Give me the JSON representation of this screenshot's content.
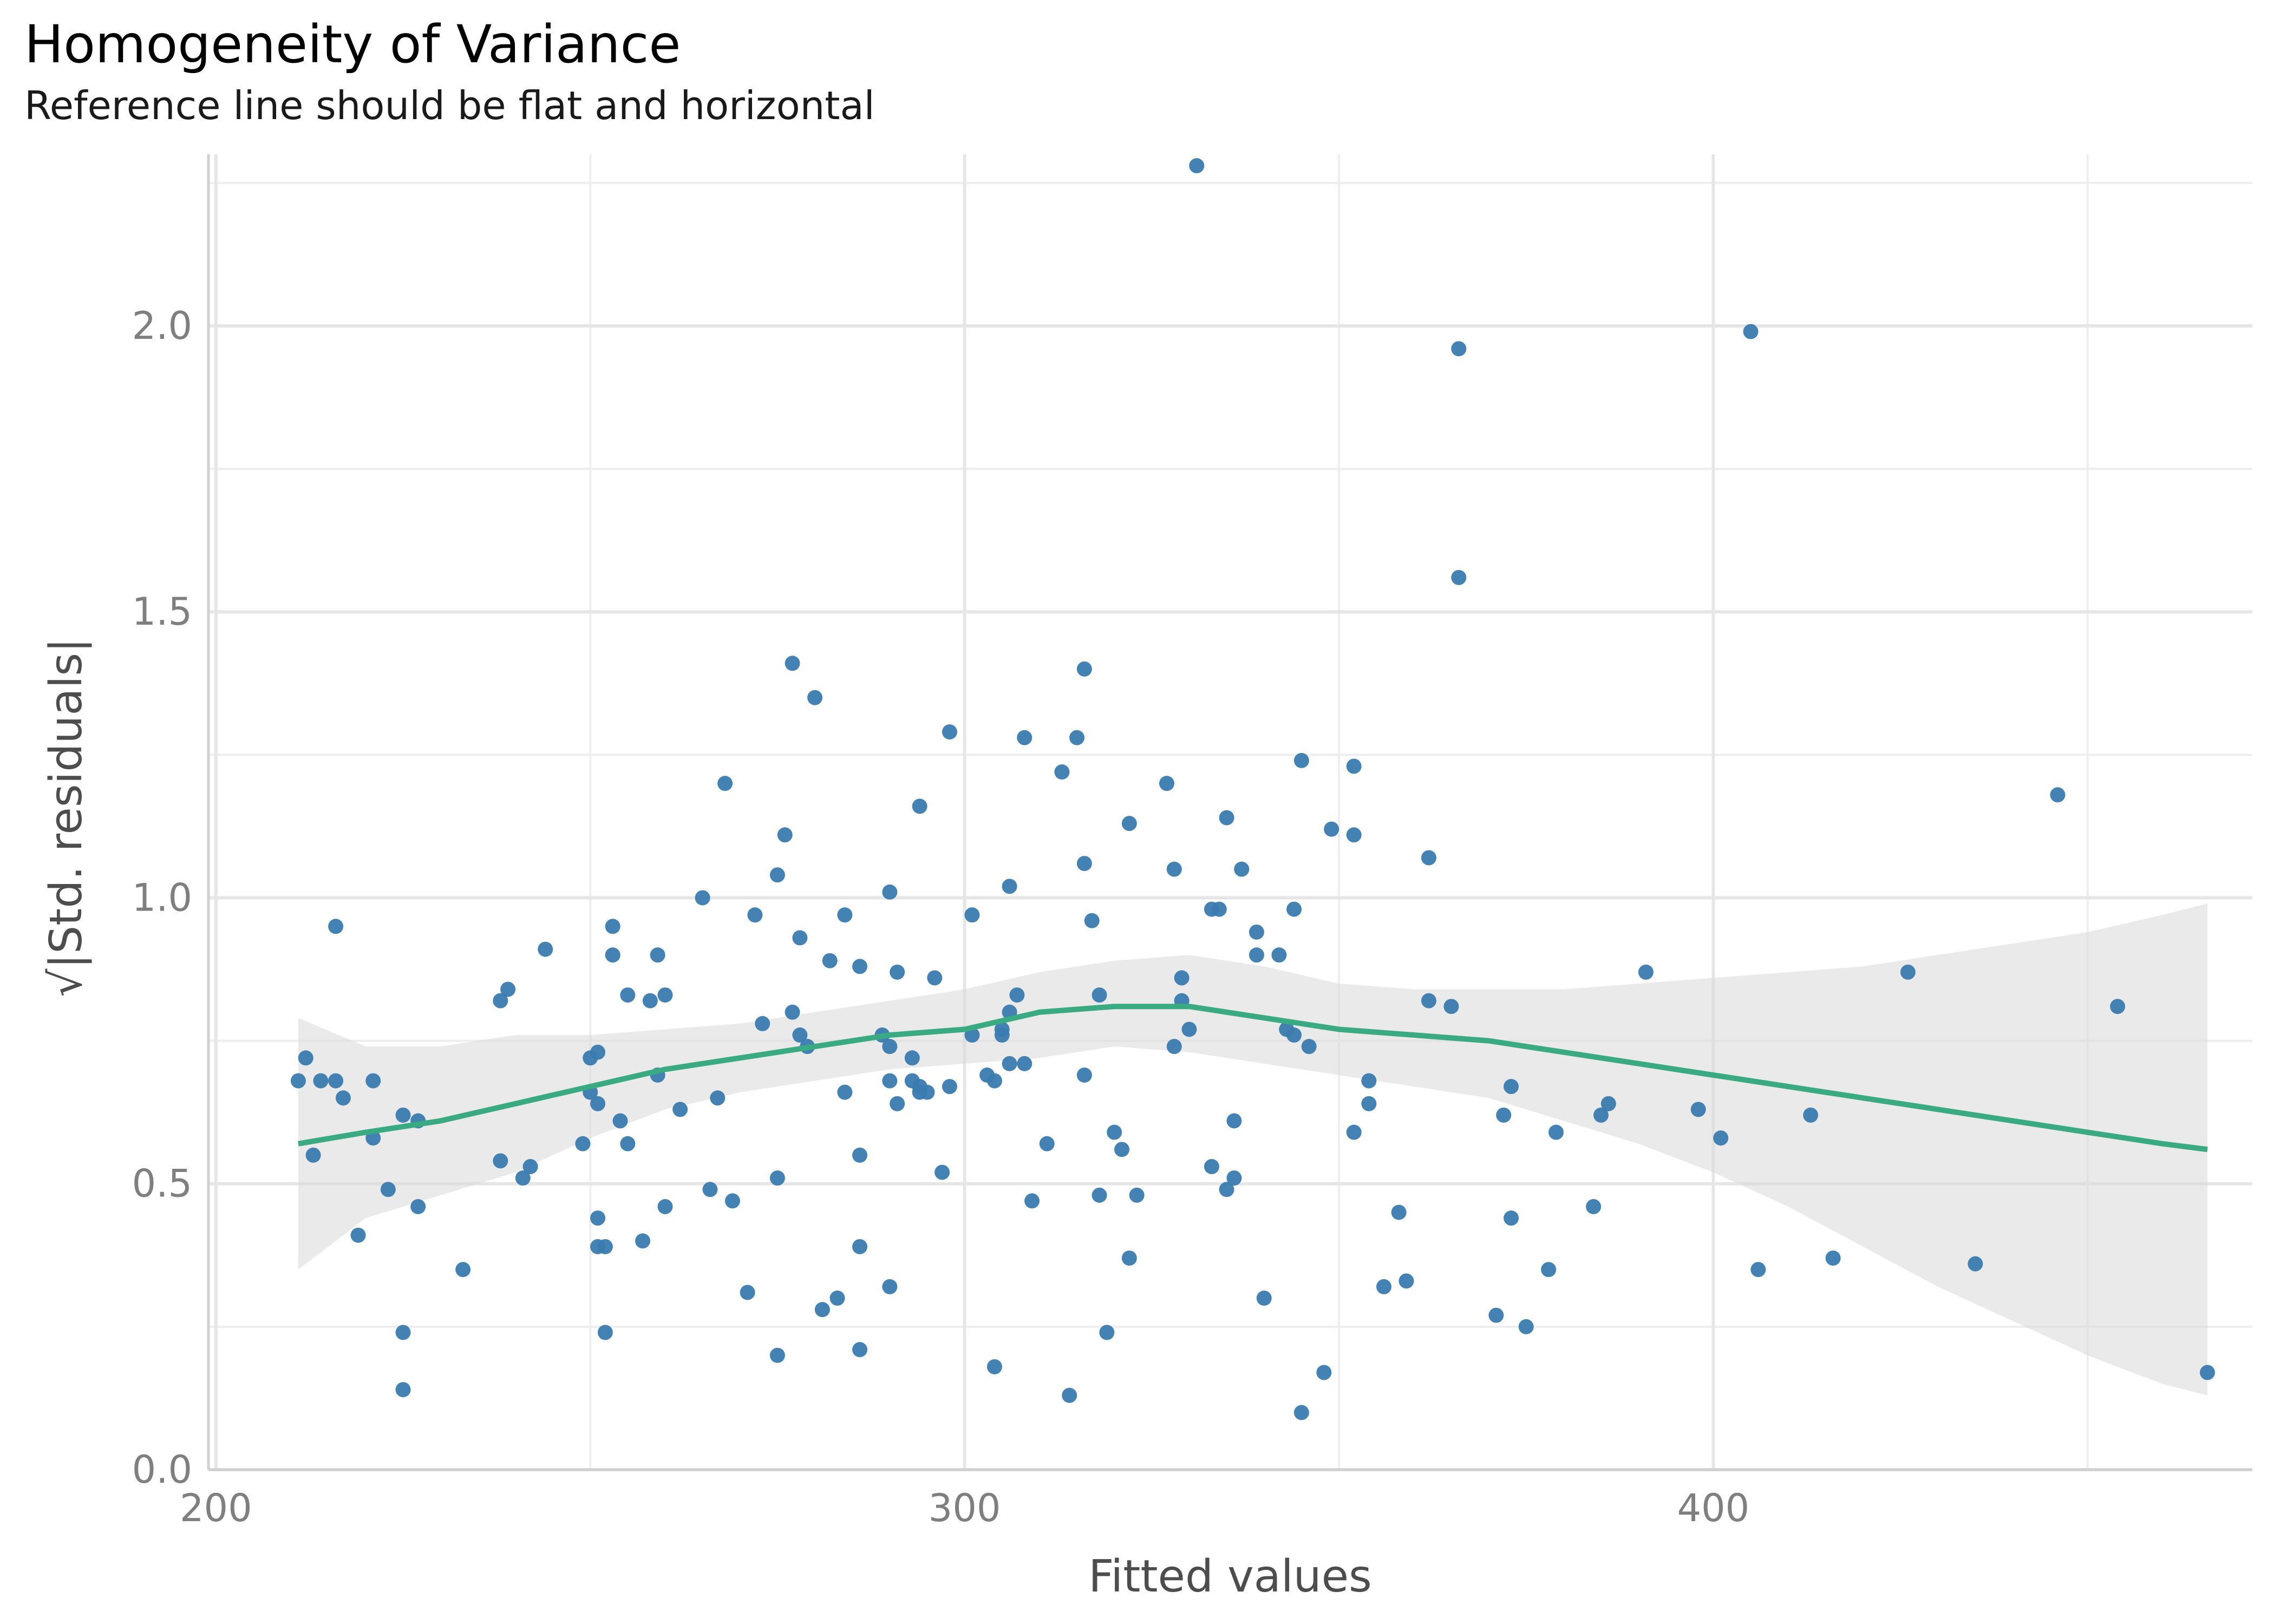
{
  "chart_data": {
    "type": "scatter",
    "title": "Homogeneity of Variance",
    "subtitle": "Reference line should be flat and horizontal",
    "xlabel": "Fitted values",
    "ylabel": "√|Std. residuals|",
    "xlim": [
      199,
      472
    ],
    "ylim": [
      0,
      2.3
    ],
    "x_ticks": [
      200,
      300,
      400
    ],
    "y_ticks": [
      0.0,
      0.5,
      1.0,
      1.5,
      2.0
    ],
    "x_tick_labels": [
      "200",
      "300",
      "400"
    ],
    "y_tick_labels": [
      "0.0",
      "0.5",
      "1.0",
      "1.5",
      "2.0"
    ],
    "grid": true,
    "colors": {
      "points": "#3a7bb0",
      "smooth": "#3aaa82",
      "band": "#d9d9d9"
    },
    "points": [
      [
        211,
        0.68
      ],
      [
        212,
        0.72
      ],
      [
        214,
        0.68
      ],
      [
        216,
        0.68
      ],
      [
        216,
        0.95
      ],
      [
        217,
        0.65
      ],
      [
        213,
        0.55
      ],
      [
        219,
        0.41
      ],
      [
        221,
        0.58
      ],
      [
        221,
        0.68
      ],
      [
        223,
        0.49
      ],
      [
        225,
        0.24
      ],
      [
        225,
        0.14
      ],
      [
        225,
        0.62
      ],
      [
        227,
        0.46
      ],
      [
        227,
        0.61
      ],
      [
        233,
        0.35
      ],
      [
        238,
        0.82
      ],
      [
        239,
        0.84
      ],
      [
        238,
        0.54
      ],
      [
        241,
        0.51
      ],
      [
        242,
        0.53
      ],
      [
        244,
        0.91
      ],
      [
        249,
        0.57
      ],
      [
        250,
        0.72
      ],
      [
        250,
        0.66
      ],
      [
        251,
        0.73
      ],
      [
        251,
        0.64
      ],
      [
        251,
        0.44
      ],
      [
        251,
        0.39
      ],
      [
        252,
        0.24
      ],
      [
        252,
        0.39
      ],
      [
        253,
        0.9
      ],
      [
        253,
        0.95
      ],
      [
        254,
        0.61
      ],
      [
        255,
        0.83
      ],
      [
        255,
        0.57
      ],
      [
        257,
        0.4
      ],
      [
        258,
        0.82
      ],
      [
        259,
        0.69
      ],
      [
        259,
        0.9
      ],
      [
        260,
        0.46
      ],
      [
        260,
        0.83
      ],
      [
        262,
        0.63
      ],
      [
        265,
        1.0
      ],
      [
        266,
        0.49
      ],
      [
        267,
        0.65
      ],
      [
        268,
        1.2
      ],
      [
        269,
        0.47
      ],
      [
        271,
        0.31
      ],
      [
        272,
        0.97
      ],
      [
        273,
        0.78
      ],
      [
        275,
        1.04
      ],
      [
        276,
        1.11
      ],
      [
        275,
        0.51
      ],
      [
        275,
        0.2
      ],
      [
        277,
        1.41
      ],
      [
        277,
        0.8
      ],
      [
        278,
        0.93
      ],
      [
        278,
        0.76
      ],
      [
        279,
        0.74
      ],
      [
        280,
        1.35
      ],
      [
        281,
        0.28
      ],
      [
        282,
        0.89
      ],
      [
        283,
        0.3
      ],
      [
        284,
        0.66
      ],
      [
        284,
        0.97
      ],
      [
        286,
        0.88
      ],
      [
        286,
        0.55
      ],
      [
        286,
        0.39
      ],
      [
        286,
        0.21
      ],
      [
        289,
        0.76
      ],
      [
        290,
        0.74
      ],
      [
        290,
        1.01
      ],
      [
        290,
        0.68
      ],
      [
        291,
        0.87
      ],
      [
        291,
        0.64
      ],
      [
        290,
        0.32
      ],
      [
        293,
        0.72
      ],
      [
        293,
        0.68
      ],
      [
        294,
        0.66
      ],
      [
        294,
        0.67
      ],
      [
        295,
        0.66
      ],
      [
        294,
        1.16
      ],
      [
        296,
        0.86
      ],
      [
        297,
        0.52
      ],
      [
        298,
        1.29
      ],
      [
        298,
        0.67
      ],
      [
        301,
        0.97
      ],
      [
        301,
        0.76
      ],
      [
        303,
        0.69
      ],
      [
        304,
        0.68
      ],
      [
        304,
        0.18
      ],
      [
        305,
        0.77
      ],
      [
        306,
        1.02
      ],
      [
        305,
        0.76
      ],
      [
        306,
        0.71
      ],
      [
        306,
        0.8
      ],
      [
        307,
        0.83
      ],
      [
        308,
        1.28
      ],
      [
        308,
        0.71
      ],
      [
        309,
        0.47
      ],
      [
        311,
        0.57
      ],
      [
        313,
        1.22
      ],
      [
        314,
        0.13
      ],
      [
        315,
        1.28
      ],
      [
        316,
        1.4
      ],
      [
        316,
        1.06
      ],
      [
        316,
        0.69
      ],
      [
        317,
        0.96
      ],
      [
        318,
        0.83
      ],
      [
        318,
        0.48
      ],
      [
        319,
        0.24
      ],
      [
        320,
        0.59
      ],
      [
        321,
        0.56
      ],
      [
        322,
        1.13
      ],
      [
        322,
        0.37
      ],
      [
        323,
        0.48
      ],
      [
        327,
        1.2
      ],
      [
        328,
        1.05
      ],
      [
        328,
        0.74
      ],
      [
        329,
        0.82
      ],
      [
        329,
        0.86
      ],
      [
        330,
        0.77
      ],
      [
        331,
        2.28
      ],
      [
        333,
        0.98
      ],
      [
        333,
        0.53
      ],
      [
        334,
        0.98
      ],
      [
        335,
        0.49
      ],
      [
        335,
        1.14
      ],
      [
        336,
        0.51
      ],
      [
        336,
        0.61
      ],
      [
        337,
        1.05
      ],
      [
        339,
        0.94
      ],
      [
        339,
        0.9
      ],
      [
        340,
        0.3
      ],
      [
        342,
        0.9
      ],
      [
        343,
        0.77
      ],
      [
        344,
        0.98
      ],
      [
        344,
        0.76
      ],
      [
        345,
        1.24
      ],
      [
        345,
        0.1
      ],
      [
        346,
        0.74
      ],
      [
        348,
        0.17
      ],
      [
        349,
        1.12
      ],
      [
        352,
        1.11
      ],
      [
        352,
        0.59
      ],
      [
        352,
        1.23
      ],
      [
        354,
        0.68
      ],
      [
        354,
        0.64
      ],
      [
        356,
        0.32
      ],
      [
        358,
        0.45
      ],
      [
        359,
        0.33
      ],
      [
        362,
        1.07
      ],
      [
        362,
        0.82
      ],
      [
        365,
        0.81
      ],
      [
        366,
        1.56
      ],
      [
        366,
        1.96
      ],
      [
        371,
        0.27
      ],
      [
        372,
        0.62
      ],
      [
        373,
        0.67
      ],
      [
        373,
        0.44
      ],
      [
        375,
        0.25
      ],
      [
        378,
        0.35
      ],
      [
        379,
        0.59
      ],
      [
        384,
        0.46
      ],
      [
        385,
        0.62
      ],
      [
        386,
        0.64
      ],
      [
        391,
        0.87
      ],
      [
        398,
        0.63
      ],
      [
        401,
        0.58
      ],
      [
        405,
        1.99
      ],
      [
        406,
        0.35
      ],
      [
        413,
        0.62
      ],
      [
        416,
        0.37
      ],
      [
        426,
        0.87
      ],
      [
        435,
        0.36
      ],
      [
        446,
        1.18
      ],
      [
        454,
        0.81
      ],
      [
        466,
        0.17
      ]
    ],
    "smooth": [
      [
        211,
        0.57
      ],
      [
        220,
        0.59
      ],
      [
        230,
        0.61
      ],
      [
        240,
        0.64
      ],
      [
        250,
        0.67
      ],
      [
        260,
        0.7
      ],
      [
        270,
        0.72
      ],
      [
        280,
        0.74
      ],
      [
        290,
        0.76
      ],
      [
        300,
        0.77
      ],
      [
        310,
        0.8
      ],
      [
        320,
        0.81
      ],
      [
        330,
        0.81
      ],
      [
        340,
        0.79
      ],
      [
        350,
        0.77
      ],
      [
        360,
        0.76
      ],
      [
        370,
        0.75
      ],
      [
        380,
        0.73
      ],
      [
        390,
        0.71
      ],
      [
        400,
        0.69
      ],
      [
        410,
        0.67
      ],
      [
        420,
        0.65
      ],
      [
        430,
        0.63
      ],
      [
        440,
        0.61
      ],
      [
        450,
        0.59
      ],
      [
        460,
        0.57
      ],
      [
        466,
        0.56
      ]
    ],
    "band_upper": [
      [
        211,
        0.79
      ],
      [
        220,
        0.74
      ],
      [
        230,
        0.74
      ],
      [
        240,
        0.76
      ],
      [
        250,
        0.76
      ],
      [
        260,
        0.77
      ],
      [
        270,
        0.78
      ],
      [
        280,
        0.8
      ],
      [
        290,
        0.82
      ],
      [
        300,
        0.84
      ],
      [
        310,
        0.87
      ],
      [
        320,
        0.89
      ],
      [
        330,
        0.9
      ],
      [
        340,
        0.88
      ],
      [
        350,
        0.85
      ],
      [
        360,
        0.84
      ],
      [
        370,
        0.84
      ],
      [
        380,
        0.84
      ],
      [
        390,
        0.85
      ],
      [
        400,
        0.86
      ],
      [
        410,
        0.87
      ],
      [
        420,
        0.88
      ],
      [
        430,
        0.9
      ],
      [
        440,
        0.92
      ],
      [
        450,
        0.94
      ],
      [
        460,
        0.97
      ],
      [
        466,
        0.99
      ]
    ],
    "band_lower": [
      [
        211,
        0.35
      ],
      [
        220,
        0.44
      ],
      [
        230,
        0.48
      ],
      [
        240,
        0.52
      ],
      [
        250,
        0.58
      ],
      [
        260,
        0.63
      ],
      [
        270,
        0.66
      ],
      [
        280,
        0.68
      ],
      [
        290,
        0.7
      ],
      [
        300,
        0.71
      ],
      [
        310,
        0.72
      ],
      [
        320,
        0.74
      ],
      [
        330,
        0.73
      ],
      [
        340,
        0.71
      ],
      [
        350,
        0.69
      ],
      [
        360,
        0.67
      ],
      [
        370,
        0.65
      ],
      [
        380,
        0.61
      ],
      [
        390,
        0.57
      ],
      [
        400,
        0.52
      ],
      [
        410,
        0.46
      ],
      [
        420,
        0.39
      ],
      [
        430,
        0.32
      ],
      [
        440,
        0.26
      ],
      [
        450,
        0.2
      ],
      [
        460,
        0.15
      ],
      [
        466,
        0.13
      ]
    ]
  }
}
